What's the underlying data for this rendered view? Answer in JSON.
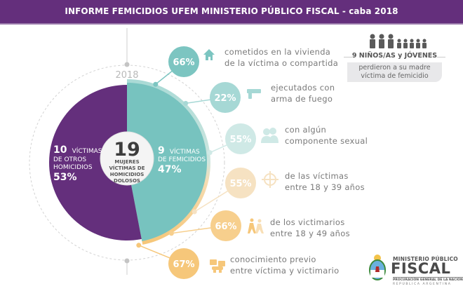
{
  "header": {
    "title": "INFORME FEMICIDIOS UFEM MINISTERIO PÚBLICO FISCAL - caba 2018"
  },
  "chart_data": {
    "type": "pie",
    "year_label": "2018",
    "center": {
      "total": "19",
      "line1": "MUJERES",
      "line2": "VÍCTIMAS DE",
      "line3": "HOMICIDIOS",
      "line4": "DOLOSOS"
    },
    "slices": [
      {
        "name": "femicidios",
        "count": 9,
        "count_label": "9",
        "label_word": "VÍCTIMAS",
        "label_line2": "DE FEMICIDIOS",
        "percent": 47,
        "percent_label": "47%",
        "color": "#77c3bf"
      },
      {
        "name": "otros-homicidios",
        "count": 10,
        "count_label": "10",
        "label_word": "VÍCTIMAS",
        "label_line2": "DE OTROS",
        "label_line3": "HOMICIDIOS",
        "percent": 53,
        "percent_label": "53%",
        "color": "#642f7c"
      }
    ]
  },
  "stats": [
    {
      "value": "66%",
      "icon": "house-icon",
      "line1": "cometidos en la vivienda",
      "line2": "de la víctima o compartida",
      "color": "#7cc5c1"
    },
    {
      "value": "22%",
      "icon": "gun-icon",
      "line1": "ejecutados con",
      "line2": "arma de fuego",
      "color": "#a6d8d5"
    },
    {
      "value": "55%",
      "icon": "couple-icon",
      "line1": "con algún",
      "line2": "componente sexual",
      "color": "#cfe9e6"
    },
    {
      "value": "55%",
      "icon": "target-icon",
      "line1": "de las víctimas",
      "line2": "entre 18 y 39 años",
      "color": "#f6e2c2"
    },
    {
      "value": "66%",
      "icon": "walkers-icon",
      "line1": "de los victimarios",
      "line2": "entre 18 y 49 años",
      "color": "#f7cf8d"
    },
    {
      "value": "67%",
      "icon": "handshake-icon",
      "line1": "conocimiento previo",
      "line2": "entre víctima y victimario",
      "color": "#f6c77a"
    }
  ],
  "kids": {
    "title": "9 NIÑOS/AS y JÓVENES",
    "line1": "perdieron a su madre",
    "line2": "víctima de femicidio"
  },
  "logo": {
    "title": "MINISTERIO PÚBLICO",
    "main": "FISCAL",
    "sub1": "PROCURACIÓN GENERAL DE LA NACIÓN",
    "sub2": "REPÚBLICA ARGENTINA"
  }
}
